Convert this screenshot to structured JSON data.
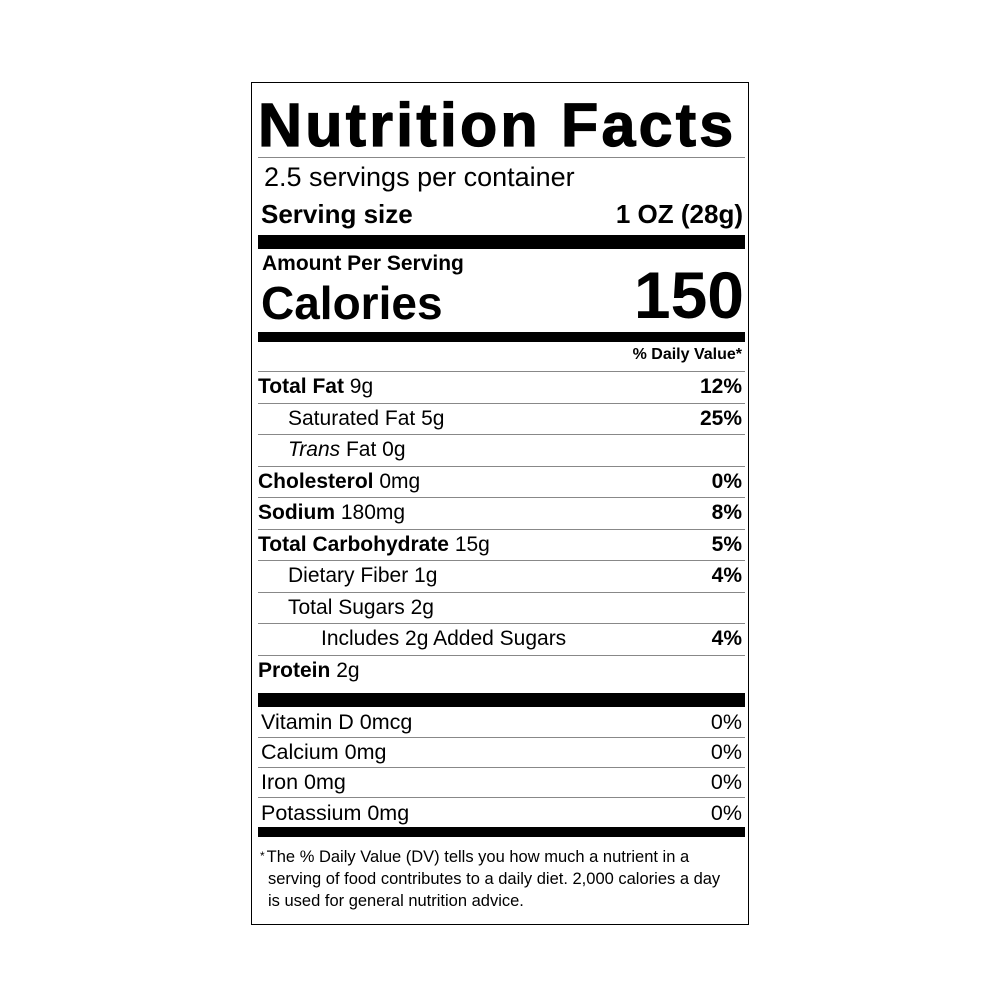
{
  "title": "Nutrition Facts",
  "servings_per_container": "2.5 servings per container",
  "serving_size": {
    "label": "Serving size",
    "value": "1 OZ (28g)"
  },
  "amount_per_serving": "Amount Per Serving",
  "calories": {
    "label": "Calories",
    "value": "150"
  },
  "daily_value_header": "% Daily Value*",
  "nutrients": [
    {
      "name": "Total Fat",
      "amount": "9g",
      "dv": "12%",
      "bold": true,
      "indent": 0
    },
    {
      "name": "Saturated Fat",
      "amount": "5g",
      "dv": "25%",
      "bold": false,
      "indent": 1
    },
    {
      "name": "Trans",
      "name_suffix": "Fat",
      "amount": "0g",
      "dv": "",
      "bold": false,
      "italic": true,
      "indent": 1
    },
    {
      "name": "Cholesterol",
      "amount": "0mg",
      "dv": "0%",
      "bold": true,
      "indent": 0
    },
    {
      "name": "Sodium",
      "amount": "180mg",
      "dv": "8%",
      "bold": true,
      "indent": 0
    },
    {
      "name": "Total Carbohydrate",
      "amount": "15g",
      "dv": "5%",
      "bold": true,
      "indent": 0
    },
    {
      "name": "Dietary Fiber",
      "amount": "1g",
      "dv": "4%",
      "bold": false,
      "indent": 1
    },
    {
      "name": "Total Sugars",
      "amount": "2g",
      "dv": "",
      "bold": false,
      "indent": 1
    },
    {
      "name": "Includes 2g Added Sugars",
      "amount": "",
      "dv": "4%",
      "bold": false,
      "indent": 2
    },
    {
      "name": "Protein",
      "amount": "2g",
      "dv": "",
      "bold": true,
      "indent": 0
    }
  ],
  "vitamins": [
    {
      "name": "Vitamin D 0mcg",
      "dv": "0%"
    },
    {
      "name": "Calcium 0mg",
      "dv": "0%"
    },
    {
      "name": "Iron 0mg",
      "dv": "0%"
    },
    {
      "name": "Potassium 0mg",
      "dv": "0%"
    }
  ],
  "footnote": {
    "star": "*",
    "line1": "The % Daily Value (DV) tells you how much a nutrient in a",
    "rest": "serving of food contributes to a daily diet. 2,000 calories a day is used for general nutrition advice."
  }
}
